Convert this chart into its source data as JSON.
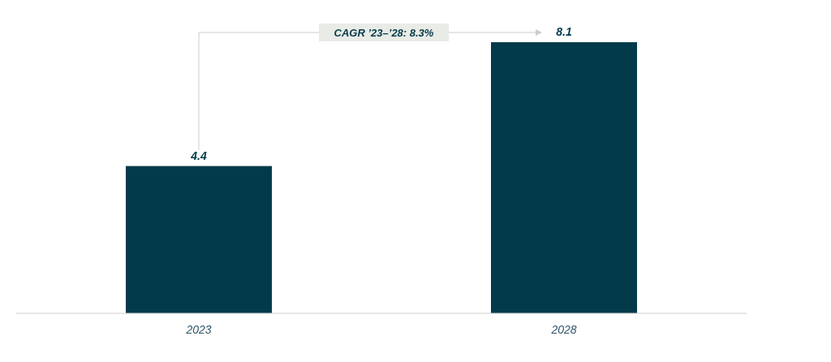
{
  "chart_data": {
    "type": "bar",
    "categories": [
      "2023",
      "2028"
    ],
    "values": [
      4.4,
      8.1
    ],
    "color": "#023a4a",
    "data_labels": true,
    "annotations": [
      "CAGR ’23–’28: 8.3%"
    ]
  }
}
